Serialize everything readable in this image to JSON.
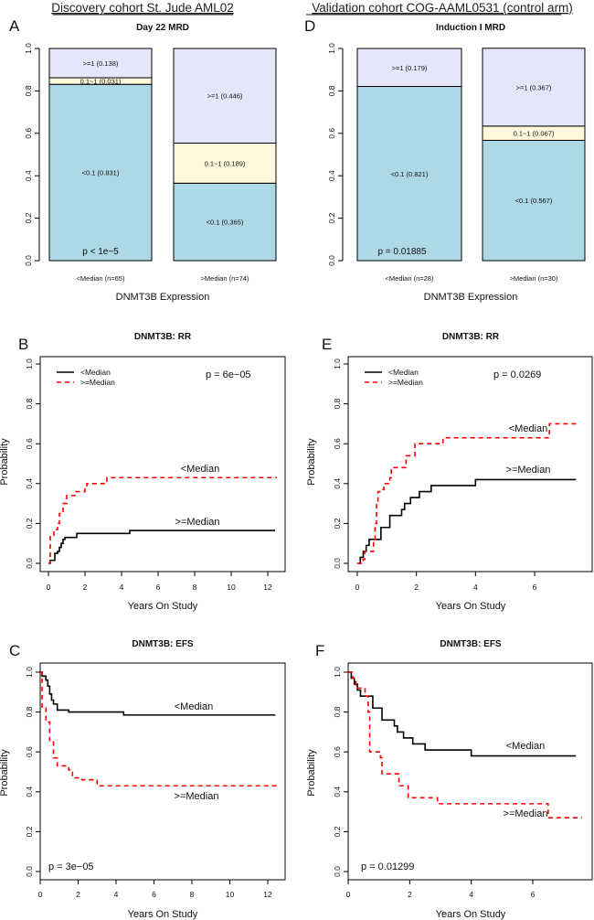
{
  "headers": {
    "left": "Discovery cohort St. Jude AML02",
    "right": "Validation cohort COG-AAML0531 (control arm)"
  },
  "chart_data": [
    {
      "panel": "A",
      "type": "bar",
      "stacked": true,
      "title": "Day 22 MRD",
      "xlabel": "DNMT3B Expression",
      "ylabel": "",
      "ylim": [
        0,
        1
      ],
      "yticks": [
        "0.0",
        "0.2",
        "0.4",
        "0.6",
        "0.8",
        "1.0"
      ],
      "annotation": "p < 1e−5",
      "categories": [
        "<Median (n=65)",
        ">Median (n=74)"
      ],
      "bars": [
        {
          "segments": [
            {
              "label": "<0.1 (0.831)",
              "value": 0.831,
              "color": "#add8e6"
            },
            {
              "label": "0.1~1 (0.031)",
              "value": 0.031,
              "color": "#fff8dc"
            },
            {
              "label": ">=1 (0.138)",
              "value": 0.138,
              "color": "#e6e6fa"
            }
          ]
        },
        {
          "segments": [
            {
              "label": "<0.1 (0.365)",
              "value": 0.365,
              "color": "#add8e6"
            },
            {
              "label": "0.1~1 (0.189)",
              "value": 0.189,
              "color": "#fff8dc"
            },
            {
              "label": ">=1 (0.446)",
              "value": 0.446,
              "color": "#e6e6fa"
            }
          ]
        }
      ]
    },
    {
      "panel": "D",
      "type": "bar",
      "stacked": true,
      "title": "Induction I MRD",
      "xlabel": "DNMT3B Expression",
      "ylabel": "",
      "ylim": [
        0,
        1
      ],
      "yticks": [
        "0.0",
        "0.2",
        "0.4",
        "0.6",
        "0.8",
        "1.0"
      ],
      "annotation": "p = 0.01885",
      "categories": [
        "<Median (n=28)",
        ">Median (n=30)"
      ],
      "bars": [
        {
          "segments": [
            {
              "label": "<0.1 (0.821)",
              "value": 0.821,
              "color": "#add8e6"
            },
            {
              "label": ">=1 (0.179)",
              "value": 0.179,
              "color": "#e6e6fa"
            }
          ]
        },
        {
          "segments": [
            {
              "label": "<0.1 (0.567)",
              "value": 0.567,
              "color": "#add8e6"
            },
            {
              "label": "0.1~1 (0.067)",
              "value": 0.067,
              "color": "#fff8dc"
            },
            {
              "label": ">=1 (0.367)",
              "value": 0.367,
              "color": "#e6e6fa"
            }
          ]
        }
      ]
    },
    {
      "panel": "B",
      "type": "line",
      "step": true,
      "title": "DNMT3B: RR",
      "xlabel": "Years On Study",
      "ylabel": "Probability",
      "xlim": [
        0,
        12.5
      ],
      "ylim": [
        0,
        1
      ],
      "xticks": [
        "0",
        "2",
        "4",
        "6",
        "8",
        "10",
        "12"
      ],
      "yticks": [
        "0.0",
        "0.2",
        "0.4",
        "0.6",
        "0.8",
        "1.0"
      ],
      "annotation": "p = 6e−05",
      "legend": "top-left",
      "series": [
        {
          "name": "<Median",
          "color": "#000000",
          "dash": false,
          "points": [
            [
              0,
              0
            ],
            [
              0.1,
              0.015
            ],
            [
              0.35,
              0.05
            ],
            [
              0.5,
              0.06
            ],
            [
              0.6,
              0.08
            ],
            [
              0.7,
              0.1
            ],
            [
              0.8,
              0.12
            ],
            [
              0.9,
              0.13
            ],
            [
              1.55,
              0.15
            ],
            [
              4.45,
              0.165
            ],
            [
              12.4,
              0.165
            ]
          ]
        },
        {
          "name": ">=Median",
          "color": "#ff0000",
          "dash": true,
          "points": [
            [
              0,
              0
            ],
            [
              0.1,
              0.14
            ],
            [
              0.3,
              0.17
            ],
            [
              0.5,
              0.2
            ],
            [
              0.6,
              0.25
            ],
            [
              0.8,
              0.3
            ],
            [
              1,
              0.34
            ],
            [
              1.5,
              0.36
            ],
            [
              2,
              0.38
            ],
            [
              2.1,
              0.4
            ],
            [
              3.2,
              0.43
            ],
            [
              12.5,
              0.43
            ]
          ]
        }
      ]
    },
    {
      "panel": "E",
      "type": "line",
      "step": true,
      "title": "DNMT3B: RR",
      "xlabel": "Years On Study",
      "ylabel": "Probability",
      "xlim": [
        0,
        7.5
      ],
      "ylim": [
        0,
        1
      ],
      "xticks": [
        "0",
        "2",
        "4",
        "6"
      ],
      "yticks": [
        "0.0",
        "0.2",
        "0.4",
        "0.6",
        "0.8",
        "1.0"
      ],
      "annotation": "p = 0.0269",
      "legend": "top-left",
      "series": [
        {
          "name": "<Median",
          "color": "#000000",
          "dash": false,
          "points": [
            [
              0,
              0
            ],
            [
              0.1,
              0.03
            ],
            [
              0.2,
              0.06
            ],
            [
              0.3,
              0.09
            ],
            [
              0.4,
              0.12
            ],
            [
              0.8,
              0.18
            ],
            [
              1.1,
              0.24
            ],
            [
              1.5,
              0.27
            ],
            [
              1.6,
              0.3
            ],
            [
              1.8,
              0.33
            ],
            [
              2.1,
              0.36
            ],
            [
              2.5,
              0.39
            ],
            [
              4,
              0.42
            ],
            [
              7.4,
              0.42
            ]
          ]
        },
        {
          "name": ">=Median",
          "color": "#ff0000",
          "dash": true,
          "points": [
            [
              0,
              0
            ],
            [
              0.2,
              0.02
            ],
            [
              0.25,
              0.06
            ],
            [
              0.55,
              0.12
            ],
            [
              0.6,
              0.2
            ],
            [
              0.65,
              0.3
            ],
            [
              0.7,
              0.36
            ],
            [
              0.8,
              0.37
            ],
            [
              0.9,
              0.4
            ],
            [
              1.1,
              0.43
            ],
            [
              1.15,
              0.48
            ],
            [
              1.65,
              0.54
            ],
            [
              1.95,
              0.6
            ],
            [
              2.9,
              0.63
            ],
            [
              6.5,
              0.7
            ],
            [
              7.5,
              0.7
            ]
          ]
        }
      ]
    },
    {
      "panel": "C",
      "type": "line",
      "step": true,
      "title": "DNMT3B: EFS",
      "xlabel": "Years On Study",
      "ylabel": "Probability",
      "xlim": [
        0,
        12.5
      ],
      "ylim": [
        0,
        1
      ],
      "xticks": [
        "0",
        "2",
        "4",
        "6",
        "8",
        "10",
        "12"
      ],
      "yticks": [
        "0.0",
        "0.2",
        "0.4",
        "0.6",
        "0.8",
        "1.0"
      ],
      "annotation": "p = 3e−05",
      "series": [
        {
          "name": "<Median",
          "color": "#000000",
          "dash": false,
          "points": [
            [
              0,
              1
            ],
            [
              0.1,
              0.98
            ],
            [
              0.3,
              0.96
            ],
            [
              0.4,
              0.93
            ],
            [
              0.5,
              0.89
            ],
            [
              0.6,
              0.86
            ],
            [
              0.7,
              0.84
            ],
            [
              0.9,
              0.81
            ],
            [
              1.5,
              0.8
            ],
            [
              4.4,
              0.785
            ],
            [
              12.4,
              0.785
            ]
          ]
        },
        {
          "name": ">=Median",
          "color": "#ff0000",
          "dash": true,
          "points": [
            [
              0,
              1
            ],
            [
              0.1,
              0.82
            ],
            [
              0.3,
              0.75
            ],
            [
              0.5,
              0.65
            ],
            [
              0.7,
              0.57
            ],
            [
              0.9,
              0.53
            ],
            [
              1.5,
              0.51
            ],
            [
              1.7,
              0.47
            ],
            [
              2.2,
              0.46
            ],
            [
              3,
              0.43
            ],
            [
              12.5,
              0.43
            ]
          ]
        }
      ]
    },
    {
      "panel": "F",
      "type": "line",
      "step": true,
      "title": "DNMT3B: EFS",
      "xlabel": "Years On Study",
      "ylabel": "Probability",
      "xlim": [
        0,
        7.6
      ],
      "ylim": [
        0,
        1
      ],
      "xticks": [
        "0",
        "2",
        "4",
        "6"
      ],
      "yticks": [
        "0.0",
        "0.2",
        "0.4",
        "0.6",
        "0.8",
        "1.0"
      ],
      "annotation": "p = 0.01299",
      "series": [
        {
          "name": "<Median",
          "color": "#000000",
          "dash": false,
          "points": [
            [
              0,
              1
            ],
            [
              0.1,
              0.97
            ],
            [
              0.2,
              0.94
            ],
            [
              0.3,
              0.91
            ],
            [
              0.4,
              0.88
            ],
            [
              0.8,
              0.82
            ],
            [
              1.1,
              0.76
            ],
            [
              1.5,
              0.73
            ],
            [
              1.6,
              0.7
            ],
            [
              1.8,
              0.67
            ],
            [
              2.1,
              0.64
            ],
            [
              2.5,
              0.61
            ],
            [
              4,
              0.58
            ],
            [
              7.4,
              0.58
            ]
          ]
        },
        {
          "name": ">=Median",
          "color": "#ff0000",
          "dash": true,
          "points": [
            [
              0,
              1
            ],
            [
              0.15,
              0.97
            ],
            [
              0.25,
              0.92
            ],
            [
              0.55,
              0.88
            ],
            [
              0.65,
              0.8
            ],
            [
              0.7,
              0.6
            ],
            [
              1.05,
              0.57
            ],
            [
              1.1,
              0.49
            ],
            [
              1.65,
              0.43
            ],
            [
              1.95,
              0.37
            ],
            [
              2.9,
              0.34
            ],
            [
              6.5,
              0.27
            ],
            [
              7.6,
              0.27
            ]
          ]
        }
      ]
    }
  ]
}
